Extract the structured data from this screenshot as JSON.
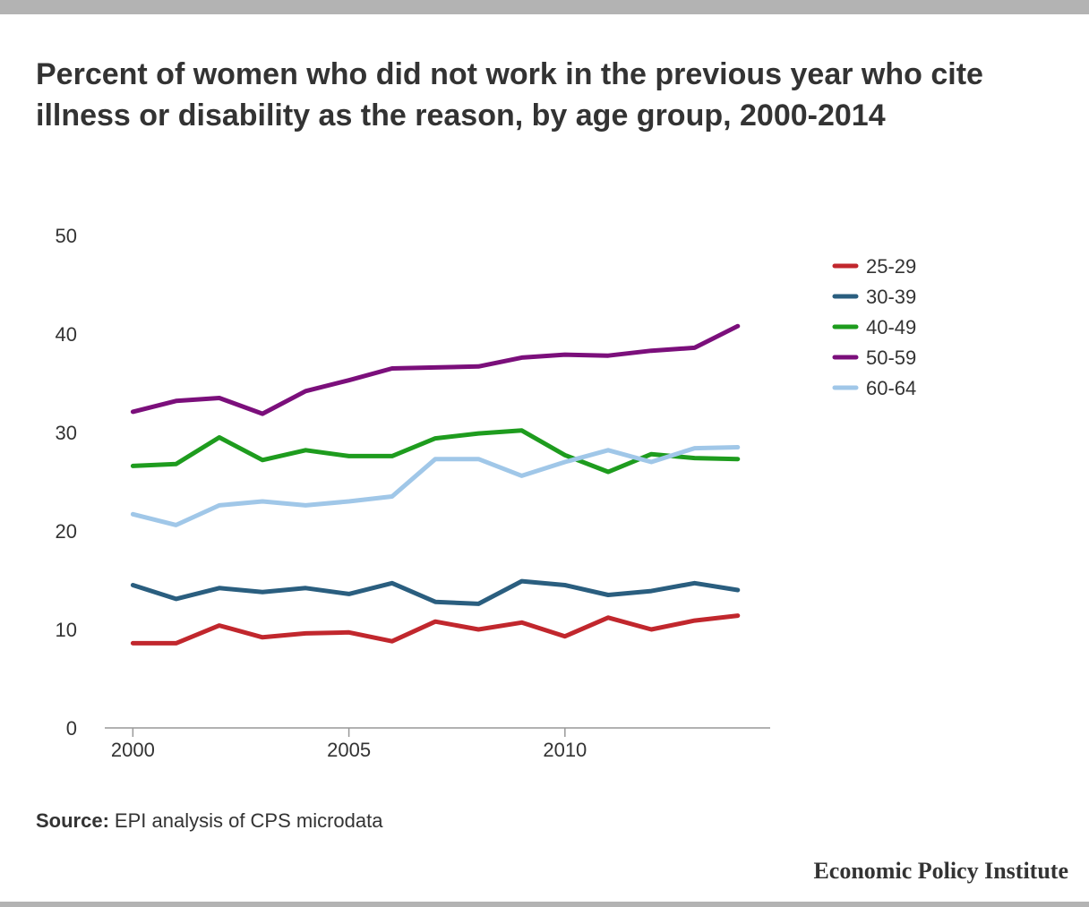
{
  "header": {
    "title": "Percent of women who did not work in the previous year who cite illness or disability as the reason, by age group, 2000-2014"
  },
  "footer": {
    "source_label": "Source:",
    "source_text": "EPI analysis of CPS microdata",
    "logo_text": "Economic Policy Institute"
  },
  "chart_data": {
    "type": "line",
    "title": "Percent of women who did not work in the previous year who cite illness or disability as the reason, by age group, 2000-2014",
    "xlabel": "",
    "ylabel": "",
    "x": [
      2000,
      2001,
      2002,
      2003,
      2004,
      2005,
      2006,
      2007,
      2008,
      2009,
      2010,
      2011,
      2012,
      2013,
      2014
    ],
    "xlim": [
      1999.35,
      2014.75
    ],
    "ylim": [
      0,
      50
    ],
    "x_ticks": [
      2000,
      2005,
      2010
    ],
    "x_tick_labels": [
      "2000",
      "2005",
      "2010"
    ],
    "y_ticks": [
      0,
      10,
      20,
      30,
      40,
      50
    ],
    "y_tick_labels": [
      "0",
      "10",
      "20",
      "30",
      "40",
      "50"
    ],
    "grid": false,
    "legend_position": "top-right",
    "series": [
      {
        "name": "25-29",
        "color": "#c1272d",
        "values": [
          8.6,
          8.6,
          10.4,
          9.2,
          9.6,
          9.7,
          8.8,
          10.8,
          10.0,
          10.7,
          9.3,
          11.2,
          10.0,
          10.9,
          11.4
        ]
      },
      {
        "name": "30-39",
        "color": "#2a5e7f",
        "values": [
          14.5,
          13.1,
          14.2,
          13.8,
          14.2,
          13.6,
          14.7,
          12.8,
          12.6,
          14.9,
          14.5,
          13.5,
          13.9,
          14.7,
          14.0
        ]
      },
      {
        "name": "40-49",
        "color": "#1e9c1e",
        "values": [
          26.6,
          26.8,
          29.5,
          27.2,
          28.2,
          27.6,
          27.6,
          29.4,
          29.9,
          30.2,
          27.7,
          26.0,
          27.8,
          27.4,
          27.3
        ]
      },
      {
        "name": "50-59",
        "color": "#7b0f7b",
        "values": [
          32.1,
          33.2,
          33.5,
          31.9,
          34.2,
          35.3,
          36.5,
          36.6,
          36.7,
          37.6,
          37.9,
          37.8,
          38.3,
          38.6,
          40.8
        ]
      },
      {
        "name": "60-64",
        "color": "#a0c7e8",
        "values": [
          21.7,
          20.6,
          22.6,
          23.0,
          22.6,
          23.0,
          23.5,
          27.3,
          27.3,
          25.6,
          27.0,
          28.2,
          27.0,
          28.4,
          28.5
        ]
      }
    ]
  }
}
